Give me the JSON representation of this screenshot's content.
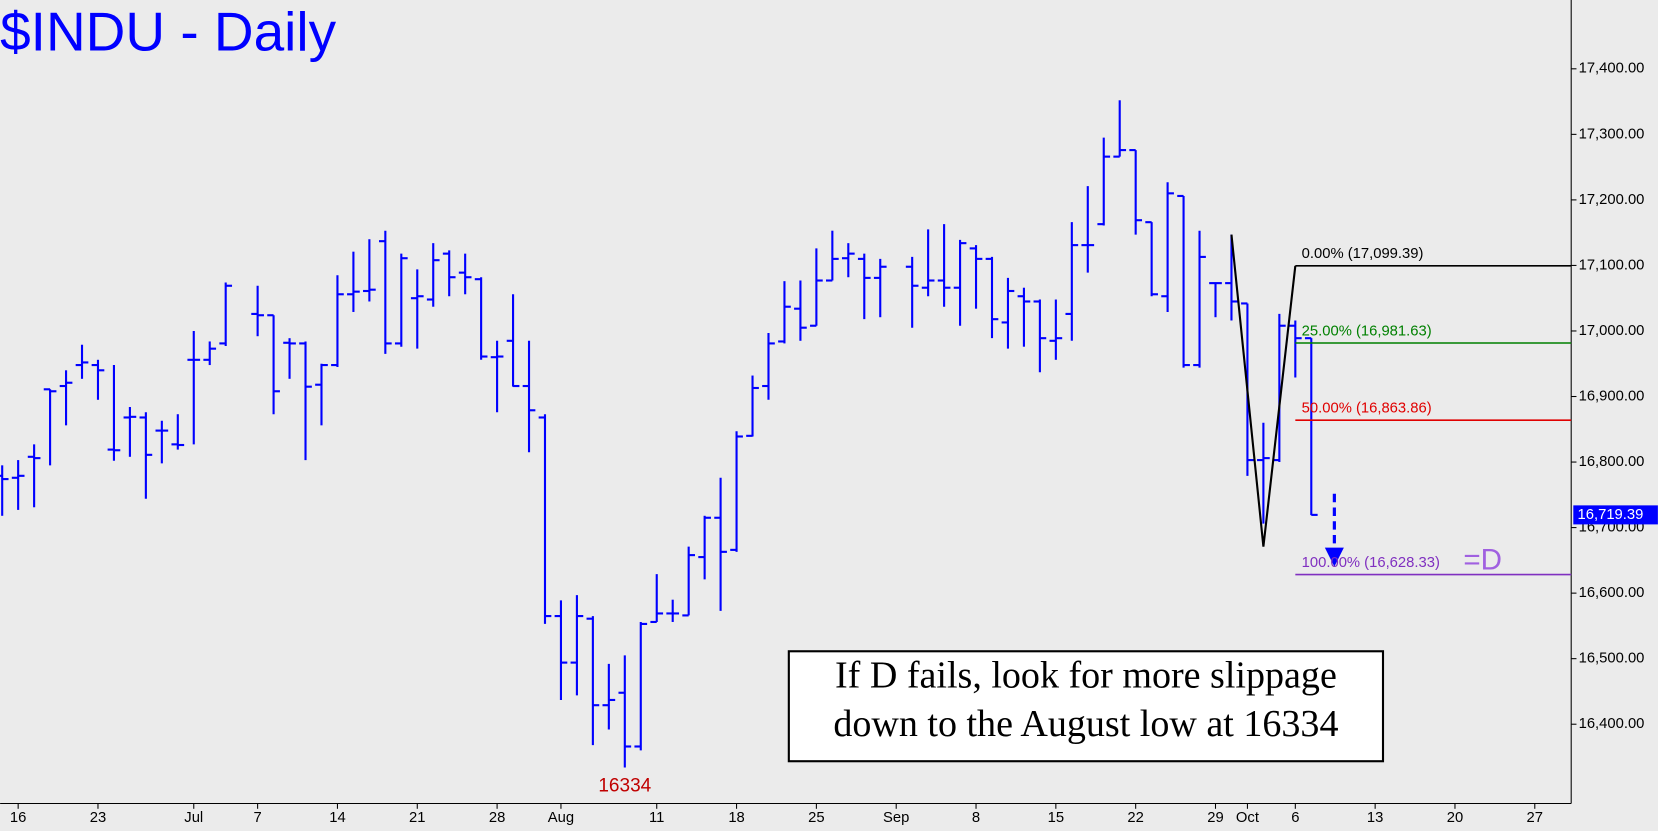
{
  "chart_data": {
    "type": "ohlc",
    "title": "$INDU - Daily",
    "color": "#0000ff",
    "x": [
      0,
      1,
      2,
      3,
      4,
      5,
      6,
      7,
      8,
      9,
      10,
      11,
      12,
      13,
      14,
      16,
      17,
      18,
      19,
      20,
      21,
      22,
      23,
      24,
      25,
      26,
      27,
      28,
      29,
      30,
      31,
      32,
      33,
      34,
      35,
      36,
      37,
      38,
      39,
      40,
      41,
      42,
      43,
      44,
      45,
      46,
      47,
      48,
      49,
      50,
      51,
      52,
      53,
      54,
      55,
      57,
      58,
      59,
      60,
      61,
      62,
      63,
      64,
      65,
      66,
      67,
      68,
      69,
      70,
      71,
      72,
      73,
      74,
      75,
      76,
      77,
      78,
      79,
      80,
      81,
      82
    ],
    "open": [
      16779,
      16776,
      16808,
      16911,
      16916,
      16948,
      16948,
      16819,
      16868,
      16868,
      16848,
      16827,
      16956,
      16956,
      16981,
      17026,
      17024,
      16982,
      16981,
      16918,
      16948,
      17056,
      17061,
      17137,
      16981,
      17050,
      17048,
      17118,
      17089,
      17079,
      16960,
      16985,
      16916,
      16868,
      16565,
      16494,
      16561,
      16429,
      16448,
      16366,
      16556,
      16569,
      16566,
      16655,
      16715,
      16666,
      16840,
      16916,
      16984,
      17034,
      17008,
      17077,
      17111,
      17110,
      17081,
      17098,
      17066,
      17077,
      17066,
      17126,
      17110,
      17013,
      17053,
      17045,
      16985,
      17026,
      17131,
      17163,
      17266,
      17276,
      17166,
      17053,
      17206,
      16948,
      17073,
      17073,
      17042,
      16803,
      16803,
      17008,
      16989
    ],
    "high": [
      16795,
      16803,
      16827,
      16911,
      16940,
      16979,
      16956,
      16948,
      16884,
      16876,
      16863,
      16873,
      17000,
      16984,
      17074,
      17069,
      17024,
      16989,
      16984,
      16950,
      17085,
      17121,
      17140,
      17153,
      17118,
      17094,
      17134,
      17123,
      17118,
      17082,
      16985,
      17056,
      16985,
      16873,
      16589,
      16597,
      16565,
      16492,
      16505,
      16556,
      16629,
      16590,
      16671,
      16718,
      16776,
      16847,
      16932,
      16997,
      17076,
      17077,
      17126,
      17153,
      17134,
      17118,
      17110,
      17113,
      17155,
      17163,
      17139,
      17131,
      17113,
      17081,
      17066,
      17048,
      17048,
      17166,
      17221,
      17295,
      17352,
      17276,
      17166,
      17227,
      17206,
      17153,
      17073,
      17147,
      17042,
      16860,
      17026,
      17016,
      16989
    ],
    "low": [
      16718,
      16727,
      16731,
      16795,
      16856,
      16927,
      16895,
      16802,
      16808,
      16744,
      16798,
      16819,
      16827,
      16948,
      16977,
      16992,
      16873,
      16927,
      16803,
      16856,
      16945,
      17029,
      17045,
      16965,
      16976,
      16973,
      17037,
      17053,
      17056,
      16956,
      16876,
      16915,
      16815,
      16553,
      16437,
      16444,
      16368,
      16392,
      16334,
      16360,
      16556,
      16556,
      16566,
      16621,
      16573,
      16663,
      16839,
      16895,
      16981,
      16985,
      17008,
      17077,
      17082,
      17018,
      17021,
      17005,
      17053,
      17037,
      17008,
      17034,
      16989,
      16973,
      16976,
      16937,
      16956,
      16985,
      17089,
      17161,
      17266,
      17147,
      17053,
      17029,
      16944,
      16944,
      17021,
      17016,
      16779,
      16706,
      16800,
      16929,
      16719
    ],
    "close": [
      16774,
      16779,
      16806,
      16908,
      16921,
      16952,
      16940,
      16818,
      16869,
      16811,
      16848,
      16826,
      16956,
      16973,
      17069,
      17024,
      16908,
      16981,
      16915,
      16948,
      17056,
      17060,
      17063,
      16981,
      17111,
      17053,
      17108,
      17082,
      17082,
      16961,
      16961,
      16916,
      16879,
      16565,
      16494,
      16565,
      16429,
      16437,
      16366,
      16553,
      16569,
      16569,
      16658,
      16715,
      16663,
      16839,
      16913,
      16981,
      17037,
      17005,
      17077,
      17110,
      17118,
      17081,
      17098,
      17069,
      17077,
      17066,
      17134,
      17110,
      17018,
      17061,
      17045,
      16989,
      16989,
      17131,
      17131,
      17266,
      17276,
      17169,
      17056,
      17210,
      16948,
      17113,
      17073,
      17045,
      16803,
      16806,
      17008,
      16989,
      16719.39
    ],
    "xlim": [
      -0.13,
      98.28
    ],
    "ylim": [
      16279,
      17505
    ],
    "xticks": [
      {
        "value": 1,
        "label": "16"
      },
      {
        "value": 6,
        "label": "23"
      },
      {
        "value": 12,
        "label": "Jul"
      },
      {
        "value": 16,
        "label": "7"
      },
      {
        "value": 21,
        "label": "14"
      },
      {
        "value": 26,
        "label": "21"
      },
      {
        "value": 31,
        "label": "28"
      },
      {
        "value": 35,
        "label": "Aug"
      },
      {
        "value": 41,
        "label": "11"
      },
      {
        "value": 46,
        "label": "18"
      },
      {
        "value": 51,
        "label": "25"
      },
      {
        "value": 56,
        "label": "Sep"
      },
      {
        "value": 61,
        "label": "8"
      },
      {
        "value": 66,
        "label": "15"
      },
      {
        "value": 71,
        "label": "22"
      },
      {
        "value": 76,
        "label": "29"
      },
      {
        "value": 78,
        "label": "Oct"
      },
      {
        "value": 81,
        "label": "6"
      },
      {
        "value": 86,
        "label": "13"
      },
      {
        "value": 91,
        "label": "20"
      },
      {
        "value": 96,
        "label": "27"
      }
    ],
    "yticks": [
      {
        "value": 16400,
        "label": "16,400.00"
      },
      {
        "value": 16500,
        "label": "16,500.00"
      },
      {
        "value": 16600,
        "label": "16,600.00"
      },
      {
        "value": 16700,
        "label": "16,700.00"
      },
      {
        "value": 16800,
        "label": "16,800.00"
      },
      {
        "value": 16900,
        "label": "16,900.00"
      },
      {
        "value": 17000,
        "label": "17,000.00"
      },
      {
        "value": 17100,
        "label": "17,100.00"
      },
      {
        "value": 17200,
        "label": "17,200.00"
      },
      {
        "value": 17300,
        "label": "17,300.00"
      },
      {
        "value": 17400,
        "label": "17,400.00"
      }
    ],
    "fib_levels": [
      {
        "label": "0.00% (17,099.39)",
        "value": 17099.39,
        "color": "#000000"
      },
      {
        "label": "25.00% (16,981.63)",
        "value": 16981.63,
        "color": "#008000"
      },
      {
        "label": "50.00% (16,863.86)",
        "value": 16863.86,
        "color": "#e00000"
      },
      {
        "label": "100.00% (16,628.33)",
        "value": 16628.33,
        "color": "#8030c0"
      }
    ],
    "fib_start": 81,
    "pattern": {
      "x": [
        77,
        79,
        81
      ],
      "values": [
        17147,
        16671,
        17099.39
      ],
      "color": "#000000"
    },
    "low_label": {
      "text": "16334",
      "x": 39,
      "value": 16334,
      "color": "#c00000"
    },
    "last_price": {
      "value": 16719.39,
      "label": "16,719.39"
    },
    "target_label": {
      "text": "=D",
      "color": "#a060e0"
    },
    "note": [
      "If D fails, look for more slippage",
      "down to the August low at 16334"
    ]
  }
}
